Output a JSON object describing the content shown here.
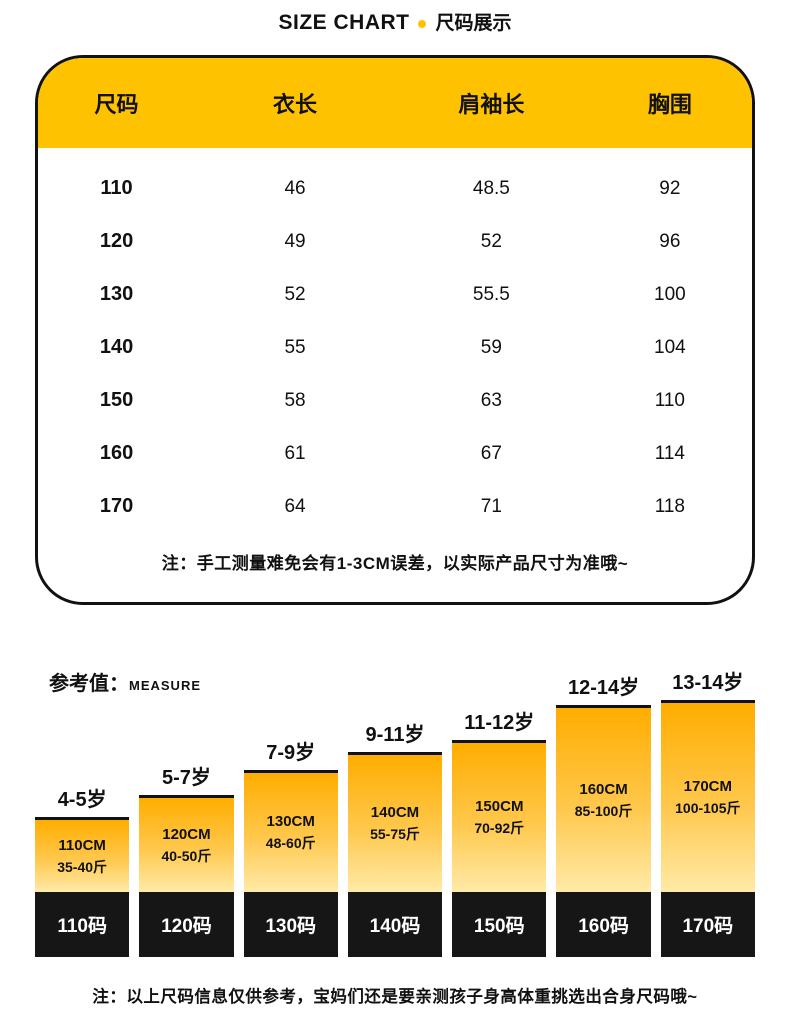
{
  "header": {
    "title_en": "SIZE CHART",
    "separator": "•",
    "title_zh": "尺码展示"
  },
  "size_table": {
    "columns": [
      "尺码",
      "衣长",
      "肩袖长",
      "胸围"
    ],
    "rows": [
      [
        "110",
        "46",
        "48.5",
        "92"
      ],
      [
        "120",
        "49",
        "52",
        "96"
      ],
      [
        "130",
        "52",
        "55.5",
        "100"
      ],
      [
        "140",
        "55",
        "59",
        "104"
      ],
      [
        "150",
        "58",
        "63",
        "110"
      ],
      [
        "160",
        "61",
        "67",
        "114"
      ],
      [
        "170",
        "64",
        "71",
        "118"
      ]
    ],
    "note": "注：手工测量难免会有1-3CM误差，以实际产品尺寸为准哦~"
  },
  "measure": {
    "label_zh": "参考值：",
    "label_en": "MEASURE"
  },
  "chart_data": {
    "type": "bar",
    "title": "参考值 MEASURE",
    "categories": [
      "110码",
      "120码",
      "130码",
      "140码",
      "150码",
      "160码",
      "170码"
    ],
    "values": [
      110,
      120,
      130,
      140,
      150,
      160,
      170
    ],
    "ylim": [
      100,
      180
    ],
    "legend": "none",
    "bars": [
      {
        "age": "4-5岁",
        "height": "110CM",
        "weight": "35-40斤",
        "size": "110码"
      },
      {
        "age": "5-7岁",
        "height": "120CM",
        "weight": "40-50斤",
        "size": "120码"
      },
      {
        "age": "7-9岁",
        "height": "130CM",
        "weight": "48-60斤",
        "size": "130码"
      },
      {
        "age": "9-11岁",
        "height": "140CM",
        "weight": "55-75斤",
        "size": "140码"
      },
      {
        "age": "11-12岁",
        "height": "150CM",
        "weight": "70-92斤",
        "size": "150码"
      },
      {
        "age": "12-14岁",
        "height": "160CM",
        "weight": "85-100斤",
        "size": "160码"
      },
      {
        "age": "13-14岁",
        "height": "170CM",
        "weight": "100-105斤",
        "size": "170码"
      }
    ]
  },
  "footer": {
    "note": "注：以上尺码信息仅供参考，宝妈们还是要亲测孩子身高体重挑选出合身尺码哦~"
  },
  "colors": {
    "accent": "#ffc200",
    "bar_gradient_top": "#ffad00",
    "bar_gradient_bottom": "#ffeaa8",
    "bar_base": "#161616"
  }
}
